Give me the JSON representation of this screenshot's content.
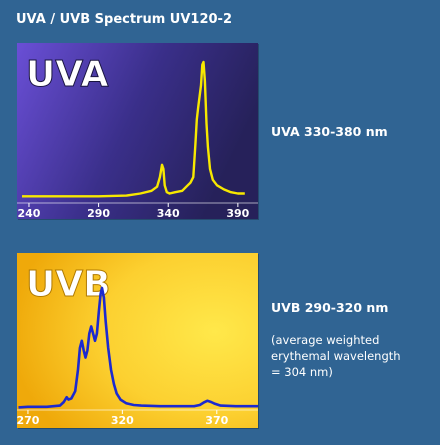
{
  "page_title": "UVA / UVB Spectrum UV120-2",
  "colors": {
    "page_background": "#306493",
    "uva_panel_dark": "#26215a",
    "uva_panel_light": "#6a4fd6",
    "uva_line": "#f7e800",
    "uvb_panel_dark": "#efa90a",
    "uvb_panel_light": "#ffe84a",
    "uvb_line": "#1c2ad0",
    "axis_text": "#ffffff"
  },
  "uva": {
    "range_label": "UVA 330-380 nm"
  },
  "uvb": {
    "range_label": "UVB 290-320 nm",
    "note_lines": [
      "(average weighted",
      "erythemal wavelength",
      "= 304 nm)"
    ]
  },
  "chart_data": [
    {
      "type": "line",
      "title": "UVA",
      "xlabel": "",
      "ylabel": "",
      "xlim": [
        235,
        398
      ],
      "ylim": [
        0,
        1
      ],
      "x_ticks": [
        240,
        290,
        340,
        390
      ],
      "grid": false,
      "series": [
        {
          "color": "#f7e800",
          "points": [
            [
              235,
              0.02
            ],
            [
              260,
              0.02
            ],
            [
              290,
              0.02
            ],
            [
              310,
              0.025
            ],
            [
              320,
              0.04
            ],
            [
              328,
              0.06
            ],
            [
              332,
              0.09
            ],
            [
              334,
              0.16
            ],
            [
              335.5,
              0.25
            ],
            [
              336.5,
              0.22
            ],
            [
              337.5,
              0.1
            ],
            [
              339,
              0.05
            ],
            [
              341,
              0.04
            ],
            [
              345,
              0.05
            ],
            [
              350,
              0.06
            ],
            [
              354,
              0.1
            ],
            [
              356,
              0.12
            ],
            [
              358,
              0.16
            ],
            [
              359.5,
              0.4
            ],
            [
              360.5,
              0.58
            ],
            [
              361.5,
              0.67
            ],
            [
              362.5,
              0.75
            ],
            [
              363.5,
              0.83
            ],
            [
              364.5,
              0.98
            ],
            [
              365.3,
              1.0
            ],
            [
              366.3,
              0.86
            ],
            [
              367.5,
              0.55
            ],
            [
              368.5,
              0.38
            ],
            [
              370,
              0.22
            ],
            [
              372,
              0.14
            ],
            [
              375,
              0.1
            ],
            [
              380,
              0.07
            ],
            [
              385,
              0.05
            ],
            [
              390,
              0.04
            ],
            [
              395,
              0.04
            ]
          ]
        }
      ]
    },
    {
      "type": "line",
      "title": "UVB",
      "xlabel": "",
      "ylabel": "",
      "xlim": [
        265,
        395
      ],
      "ylim": [
        0,
        1
      ],
      "x_ticks": [
        270,
        320,
        370
      ],
      "grid": false,
      "series": [
        {
          "color": "#1c2ad0",
          "points": [
            [
              265,
              0.005
            ],
            [
              270,
              0.01
            ],
            [
              280,
              0.01
            ],
            [
              287,
              0.02
            ],
            [
              289,
              0.05
            ],
            [
              290.5,
              0.09
            ],
            [
              291.5,
              0.07
            ],
            [
              293,
              0.08
            ],
            [
              295,
              0.14
            ],
            [
              296.5,
              0.32
            ],
            [
              297.5,
              0.5
            ],
            [
              298.5,
              0.56
            ],
            [
              299.5,
              0.48
            ],
            [
              300.5,
              0.42
            ],
            [
              301.5,
              0.48
            ],
            [
              302.5,
              0.62
            ],
            [
              303.5,
              0.68
            ],
            [
              304.5,
              0.62
            ],
            [
              305.5,
              0.56
            ],
            [
              306.5,
              0.62
            ],
            [
              307.5,
              0.8
            ],
            [
              308.5,
              0.95
            ],
            [
              309.2,
              1.0
            ],
            [
              310.2,
              0.92
            ],
            [
              311.2,
              0.72
            ],
            [
              312.5,
              0.5
            ],
            [
              314,
              0.32
            ],
            [
              315.5,
              0.2
            ],
            [
              317,
              0.12
            ],
            [
              319,
              0.07
            ],
            [
              322,
              0.04
            ],
            [
              326,
              0.025
            ],
            [
              330,
              0.02
            ],
            [
              340,
              0.015
            ],
            [
              350,
              0.015
            ],
            [
              358,
              0.015
            ],
            [
              361,
              0.025
            ],
            [
              363,
              0.045
            ],
            [
              365,
              0.06
            ],
            [
              367,
              0.05
            ],
            [
              369,
              0.035
            ],
            [
              372,
              0.02
            ],
            [
              380,
              0.015
            ],
            [
              395,
              0.015
            ]
          ]
        }
      ]
    }
  ]
}
